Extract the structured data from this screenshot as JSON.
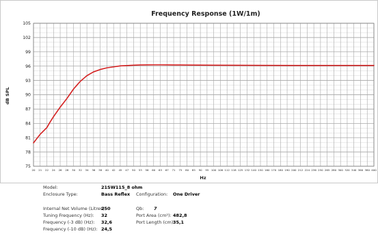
{
  "chart_data": {
    "type": "line",
    "title": "Frequency Response (1W/1m)",
    "xlabel": "Hz",
    "ylabel": "dB SPL",
    "x_ticks": [
      20,
      21,
      22,
      24,
      26,
      28,
      30,
      32,
      34,
      36,
      38,
      40,
      42,
      45,
      47,
      50,
      53,
      56,
      60,
      63,
      67,
      71,
      75,
      80,
      85,
      90,
      95,
      100,
      106,
      112,
      118,
      125,
      132,
      140,
      150,
      160,
      170,
      180,
      190,
      200,
      212,
      224,
      236,
      250,
      265,
      280,
      300,
      320,
      340,
      360,
      380,
      400
    ],
    "y_ticks": [
      75,
      78,
      81,
      84,
      87,
      90,
      93,
      96,
      99,
      102,
      105
    ],
    "ylim": [
      75,
      105
    ],
    "grid": true,
    "series": [
      {
        "color": "#d42020",
        "x": [
          20,
          21,
          22,
          23,
          24,
          25,
          26,
          27,
          28,
          29,
          30,
          31,
          32,
          33,
          34,
          35,
          36,
          38,
          40,
          42,
          45,
          47,
          50,
          53,
          56,
          60,
          63,
          67,
          71,
          75,
          80,
          90,
          100,
          125,
          150,
          200,
          250,
          300,
          350,
          400
        ],
        "y": [
          79.9,
          81.7,
          83.1,
          84.3,
          85.4,
          86.4,
          87.4,
          88.3,
          89.2,
          90.2,
          91.2,
          92.0,
          92.8,
          93.4,
          94.0,
          94.4,
          94.8,
          95.3,
          95.65,
          95.85,
          96.05,
          96.12,
          96.2,
          96.25,
          96.27,
          96.28,
          96.28,
          96.27,
          96.26,
          96.25,
          96.24,
          96.22,
          96.2,
          96.18,
          96.16,
          96.15,
          96.15,
          96.15,
          96.15,
          96.15
        ]
      }
    ]
  },
  "info": {
    "model_label": "Model:",
    "model_value": "21SW115_8 ohm",
    "enclosure_label": "Enclosure Type:",
    "enclosure_value": "Bass Reflex",
    "config_label": "Configuration:",
    "config_value": "One Driver",
    "volume_label": "Internal Net Volume (Litres):",
    "volume_value": "250",
    "qb_label": "Qb:",
    "qb_value": "7",
    "tuning_label": "Tuning Frequency (Hz):",
    "tuning_value": "32",
    "port_area_label": "Port Area (cm²):",
    "port_area_value": "482,8",
    "f3_label": "Frequency (-3 dB) (Hz):",
    "f3_value": "32,6",
    "port_length_label": "Port Length (cm):",
    "port_length_value": "35,1",
    "f10_label": "Frequency (-10 dB) (Hz):",
    "f10_value": "24,5"
  }
}
